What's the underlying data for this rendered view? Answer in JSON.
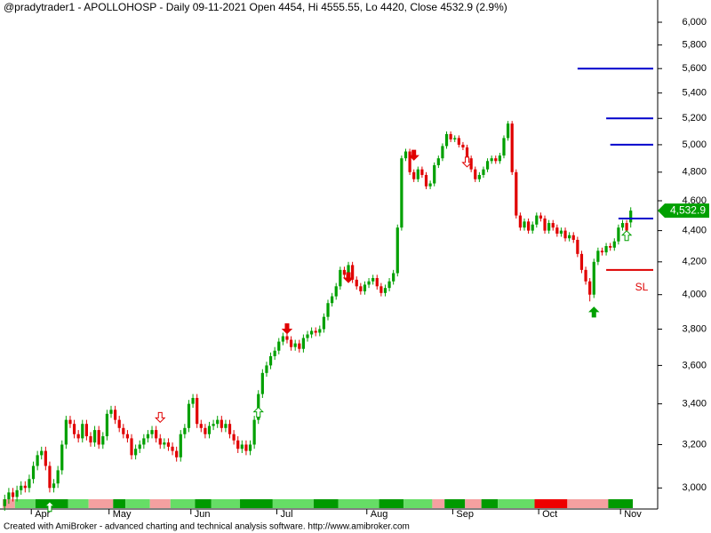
{
  "chart_data": {
    "type": "candlestick",
    "title": "@pradytrader1 - APOLLOHOSP - Daily 09-11-2021 Open 4454, Hi 4555.55, Lo 4420, Close 4532.9 (2.9%)",
    "footnote": "Created with AmiBroker - advanced charting and technical analysis software. http://www.amibroker.com",
    "categories": [
      null,
      null,
      null,
      null,
      null,
      null,
      null,
      "Apr",
      null,
      null,
      null,
      null,
      null,
      null,
      null,
      null,
      null,
      null,
      null,
      null,
      null,
      null,
      null,
      null,
      null,
      null,
      "May",
      null,
      null,
      null,
      null,
      null,
      null,
      null,
      null,
      null,
      null,
      null,
      null,
      null,
      null,
      null,
      null,
      null,
      null,
      null,
      "Jun",
      null,
      null,
      null,
      null,
      null,
      null,
      null,
      null,
      null,
      null,
      null,
      null,
      null,
      null,
      null,
      null,
      null,
      null,
      null,
      null,
      "Jul",
      null,
      null,
      null,
      null,
      null,
      null,
      null,
      null,
      null,
      null,
      null,
      null,
      null,
      null,
      null,
      null,
      null,
      null,
      null,
      null,
      null,
      "Aug",
      null,
      null,
      null,
      null,
      null,
      null,
      null,
      null,
      null,
      null,
      null,
      null,
      null,
      null,
      null,
      null,
      null,
      null,
      null,
      null,
      "Sep",
      null,
      null,
      null,
      null,
      null,
      null,
      null,
      null,
      null,
      null,
      null,
      null,
      null,
      null,
      null,
      null,
      null,
      null,
      null,
      null,
      "Oct",
      null,
      null,
      null,
      null,
      null,
      null,
      null,
      null,
      null,
      null,
      null,
      null,
      null,
      null,
      null,
      null,
      null,
      null,
      null,
      "Nov",
      null,
      null
    ],
    "open": [
      2920,
      2950,
      2980,
      2960,
      2990,
      3010,
      3000,
      3040,
      3100,
      3150,
      3170,
      3100,
      3000,
      3020,
      3080,
      3200,
      3320,
      3300,
      3250,
      3230,
      3300,
      3240,
      3210,
      3270,
      3200,
      3240,
      3350,
      3370,
      3320,
      3280,
      3250,
      3230,
      3150,
      3180,
      3200,
      3230,
      3250,
      3270,
      3230,
      3200,
      3210,
      3190,
      3170,
      3140,
      3250,
      3280,
      3400,
      3430,
      3300,
      3280,
      3250,
      3290,
      3300,
      3320,
      3280,
      3300,
      3250,
      3220,
      3180,
      3200,
      3170,
      3200,
      3320,
      3450,
      3560,
      3600,
      3650,
      3680,
      3730,
      3760,
      3740,
      3700,
      3720,
      3690,
      3750,
      3770,
      3790,
      3780,
      3800,
      3870,
      3950,
      3990,
      4050,
      4150,
      4120,
      4180,
      4090,
      4050,
      4020,
      4060,
      4080,
      4100,
      4050,
      4010,
      4040,
      4080,
      4130,
      4420,
      4900,
      4950,
      4800,
      4750,
      4820,
      4780,
      4700,
      4720,
      4850,
      4900,
      4990,
      5080,
      5040,
      5050,
      5000,
      4980,
      4900,
      4820,
      4750,
      4780,
      4820,
      4880,
      4900,
      4880,
      4920,
      5050,
      5160,
      4800,
      4500,
      4420,
      4460,
      4400,
      4440,
      4500,
      4480,
      4400,
      4450,
      4420,
      4380,
      4400,
      4350,
      4370,
      4340,
      4250,
      4150,
      4080,
      4000,
      4200,
      4270,
      4260,
      4300,
      4290,
      4330,
      4420,
      4450,
      4454
    ],
    "high": [
      2970,
      3000,
      3000,
      3010,
      3030,
      3030,
      3060,
      3120,
      3170,
      3190,
      3190,
      3120,
      3040,
      3100,
      3220,
      3340,
      3340,
      3320,
      3270,
      3320,
      3320,
      3260,
      3290,
      3290,
      3260,
      3370,
      3390,
      3390,
      3340,
      3300,
      3270,
      3250,
      3200,
      3220,
      3250,
      3270,
      3290,
      3290,
      3250,
      3230,
      3230,
      3210,
      3190,
      3270,
      3300,
      3420,
      3450,
      3450,
      3320,
      3300,
      3310,
      3320,
      3340,
      3340,
      3320,
      3320,
      3270,
      3240,
      3220,
      3220,
      3220,
      3340,
      3470,
      3580,
      3620,
      3670,
      3700,
      3750,
      3780,
      3780,
      3760,
      3740,
      3740,
      3770,
      3790,
      3810,
      3810,
      3820,
      3890,
      3970,
      4010,
      4070,
      4170,
      4170,
      4200,
      4200,
      4110,
      4070,
      4080,
      4100,
      4120,
      4120,
      4070,
      4060,
      4100,
      4150,
      4440,
      4920,
      4970,
      4970,
      4820,
      4840,
      4840,
      4800,
      4740,
      4870,
      4920,
      5010,
      5100,
      5100,
      5070,
      5070,
      5020,
      5000,
      4920,
      4840,
      4800,
      4840,
      4900,
      4920,
      4920,
      4940,
      5070,
      5180,
      5180,
      4820,
      4520,
      4480,
      4480,
      4460,
      4520,
      4520,
      4500,
      4470,
      4470,
      4440,
      4420,
      4420,
      4390,
      4390,
      4360,
      4270,
      4170,
      4100,
      4220,
      4290,
      4290,
      4320,
      4320,
      4350,
      4440,
      4470,
      4470,
      4555.55
    ],
    "low": [
      2900,
      2930,
      2940,
      2940,
      2970,
      2980,
      2980,
      3020,
      3080,
      3130,
      3080,
      2980,
      2980,
      3000,
      3060,
      3180,
      3280,
      3230,
      3210,
      3210,
      3220,
      3190,
      3190,
      3180,
      3180,
      3220,
      3330,
      3300,
      3260,
      3230,
      3210,
      3130,
      3130,
      3160,
      3180,
      3210,
      3230,
      3210,
      3180,
      3180,
      3170,
      3150,
      3120,
      3120,
      3230,
      3260,
      3380,
      3280,
      3260,
      3230,
      3230,
      3270,
      3280,
      3260,
      3260,
      3230,
      3200,
      3160,
      3160,
      3150,
      3150,
      3180,
      3300,
      3430,
      3540,
      3580,
      3630,
      3660,
      3710,
      3720,
      3680,
      3680,
      3670,
      3670,
      3730,
      3750,
      3760,
      3760,
      3780,
      3850,
      3930,
      3970,
      4030,
      4100,
      4100,
      4070,
      4030,
      4000,
      4000,
      4040,
      4060,
      4030,
      3990,
      3990,
      4020,
      4060,
      4110,
      4400,
      4880,
      4780,
      4730,
      4730,
      4760,
      4680,
      4680,
      4700,
      4830,
      4880,
      4970,
      5020,
      5020,
      4980,
      4960,
      4880,
      4800,
      4730,
      4730,
      4760,
      4800,
      4860,
      4860,
      4860,
      4900,
      5030,
      4780,
      4480,
      4400,
      4400,
      4380,
      4380,
      4420,
      4460,
      4380,
      4380,
      4400,
      4360,
      4360,
      4330,
      4330,
      4320,
      4230,
      4130,
      4060,
      3960,
      3980,
      4180,
      4240,
      4240,
      4270,
      4270,
      4310,
      4400,
      4380,
      4420
    ],
    "close": [
      2950,
      2980,
      2960,
      2990,
      3010,
      3000,
      3040,
      3100,
      3150,
      3170,
      3100,
      3000,
      3020,
      3080,
      3200,
      3320,
      3300,
      3250,
      3230,
      3300,
      3240,
      3210,
      3270,
      3200,
      3240,
      3350,
      3370,
      3320,
      3280,
      3250,
      3230,
      3150,
      3180,
      3200,
      3230,
      3250,
      3270,
      3230,
      3200,
      3210,
      3190,
      3170,
      3140,
      3250,
      3280,
      3400,
      3430,
      3300,
      3280,
      3250,
      3290,
      3300,
      3320,
      3280,
      3300,
      3250,
      3220,
      3180,
      3200,
      3170,
      3200,
      3320,
      3450,
      3560,
      3600,
      3650,
      3680,
      3730,
      3760,
      3740,
      3700,
      3720,
      3690,
      3750,
      3770,
      3790,
      3780,
      3800,
      3870,
      3950,
      3990,
      4050,
      4150,
      4120,
      4180,
      4090,
      4050,
      4020,
      4060,
      4080,
      4100,
      4050,
      4010,
      4040,
      4080,
      4130,
      4420,
      4900,
      4950,
      4800,
      4750,
      4820,
      4780,
      4700,
      4720,
      4850,
      4900,
      4990,
      5080,
      5040,
      5050,
      5000,
      4980,
      4900,
      4820,
      4750,
      4780,
      4820,
      4880,
      4900,
      4880,
      4920,
      5050,
      5160,
      4800,
      4500,
      4420,
      4460,
      4400,
      4440,
      4500,
      4480,
      4400,
      4450,
      4420,
      4380,
      4400,
      4350,
      4370,
      4340,
      4250,
      4150,
      4080,
      4000,
      4200,
      4270,
      4260,
      4300,
      4290,
      4330,
      4420,
      4450,
      4400,
      4532.9
    ],
    "up_color": "#00a000",
    "down_color": "#e00000",
    "log_scale": true,
    "ylim": [
      2950,
      6080
    ],
    "yticks": [
      {
        "value": 3000,
        "label": "3,000"
      },
      {
        "value": 3200,
        "label": "3,200"
      },
      {
        "value": 3400,
        "label": "3,400"
      },
      {
        "value": 3600,
        "label": "3,600"
      },
      {
        "value": 3800,
        "label": "3,800"
      },
      {
        "value": 4000,
        "label": "4,000"
      },
      {
        "value": 4200,
        "label": "4,200"
      },
      {
        "value": 4400,
        "label": "4,400"
      },
      {
        "value": 4600,
        "label": "4,600"
      },
      {
        "value": 4800,
        "label": "4,800"
      },
      {
        "value": 5000,
        "label": "5,000"
      },
      {
        "value": 5200,
        "label": "5,200"
      },
      {
        "value": 5400,
        "label": "5,400"
      },
      {
        "value": 5600,
        "label": "5,600"
      },
      {
        "value": 5800,
        "label": "5,800"
      },
      {
        "value": 6000,
        "label": "6,000"
      }
    ],
    "last_price": {
      "value": 4532.9,
      "label": "4,532.9",
      "color": "#00a000"
    },
    "levels": [
      {
        "value": 5600,
        "color": "#0000cc",
        "start": 140
      },
      {
        "value": 5200,
        "color": "#0000cc",
        "start": 147
      },
      {
        "value": 5000,
        "color": "#0000cc",
        "start": 148
      },
      {
        "value": 4480,
        "color": "#0000cc",
        "start": 150
      },
      {
        "value": 4150,
        "color": "#dd0000",
        "start": 147,
        "label": "SL"
      }
    ],
    "signals": [
      {
        "at": 11,
        "kind": "buy",
        "filled": false,
        "price": 2920
      },
      {
        "at": 38,
        "kind": "sell",
        "filled": false,
        "price": 3330
      },
      {
        "at": 62,
        "kind": "buy",
        "filled": false,
        "price": 3360
      },
      {
        "at": 69,
        "kind": "sell",
        "filled": true,
        "price": 3800
      },
      {
        "at": 84,
        "kind": "sell",
        "filled": true,
        "price": 4100
      },
      {
        "at": 100,
        "kind": "sell",
        "filled": true,
        "price": 4920
      },
      {
        "at": 113,
        "kind": "sell",
        "filled": false,
        "price": 4870
      },
      {
        "at": 144,
        "kind": "buy",
        "filled": true,
        "price": 3900
      },
      {
        "at": 152,
        "kind": "buy",
        "filled": false,
        "price": 4370
      }
    ],
    "ribbon": [
      {
        "color": "#f4a0a0",
        "count": 3
      },
      {
        "color": "#66dd66",
        "count": 5
      },
      {
        "color": "#009a00",
        "count": 8
      },
      {
        "color": "#66dd66",
        "count": 5
      },
      {
        "color": "#f4a0a0",
        "count": 6
      },
      {
        "color": "#009a00",
        "count": 3
      },
      {
        "color": "#66dd66",
        "count": 6
      },
      {
        "color": "#f4a0a0",
        "count": 5
      },
      {
        "color": "#66dd66",
        "count": 6
      },
      {
        "color": "#009a00",
        "count": 4
      },
      {
        "color": "#66dd66",
        "count": 7
      },
      {
        "color": "#009a00",
        "count": 8
      },
      {
        "color": "#66dd66",
        "count": 10
      },
      {
        "color": "#009a00",
        "count": 6
      },
      {
        "color": "#66dd66",
        "count": 10
      },
      {
        "color": "#009a00",
        "count": 6
      },
      {
        "color": "#66dd66",
        "count": 7
      },
      {
        "color": "#f4a0a0",
        "count": 3
      },
      {
        "color": "#009a00",
        "count": 5
      },
      {
        "color": "#f4a0a0",
        "count": 4
      },
      {
        "color": "#009a00",
        "count": 4
      },
      {
        "color": "#66dd66",
        "count": 9
      },
      {
        "color": "#ee0000",
        "count": 8
      },
      {
        "color": "#f4a0a0",
        "count": 10
      },
      {
        "color": "#009a00",
        "count": 6
      }
    ]
  }
}
